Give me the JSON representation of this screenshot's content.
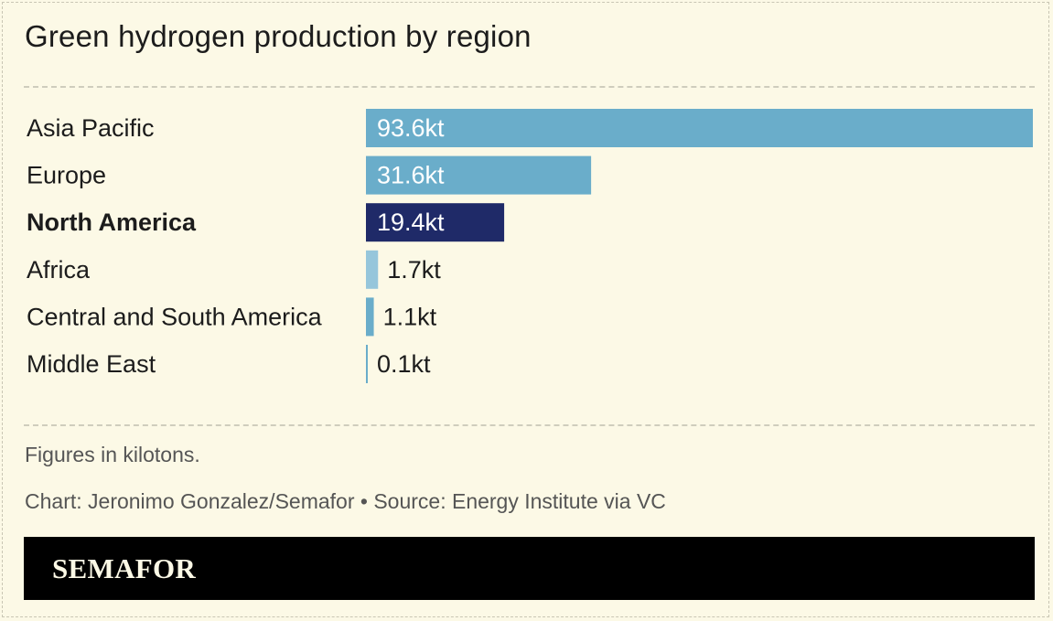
{
  "header": {
    "title": "Green hydrogen production by region"
  },
  "chart_data": {
    "type": "bar",
    "orientation": "horizontal",
    "categories": [
      "Asia Pacific",
      "Europe",
      "North America",
      "Africa",
      "Central and South America",
      "Middle East"
    ],
    "values": [
      93.6,
      31.6,
      19.4,
      1.7,
      1.1,
      0.1
    ],
    "value_labels": [
      "93.6kt",
      "31.6kt",
      "19.4kt",
      "1.7kt",
      "1.1kt",
      "0.1kt"
    ],
    "highlight": "North America",
    "xlim": [
      0,
      93.6
    ],
    "grid": false,
    "legend": "none",
    "colors": {
      "bar": "#6aadca",
      "bar_light": "#96c6db",
      "highlight": "#1f2a68"
    }
  },
  "notes": {
    "units": "Figures in kilotons.",
    "credit": "Chart: Jeronimo Gonzalez/Semafor • Source: Energy Institute via VC"
  },
  "footer": {
    "brand": "SEMAFOR"
  }
}
